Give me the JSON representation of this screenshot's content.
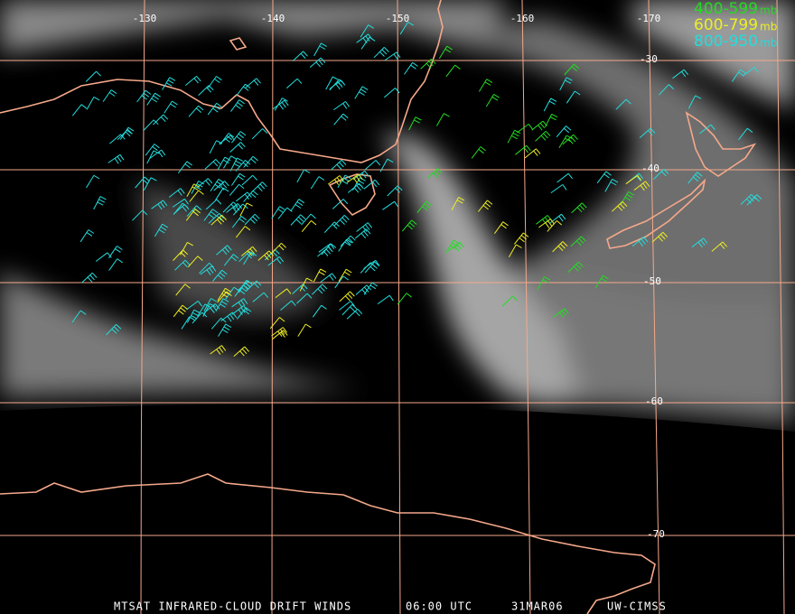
{
  "title": "MTSAT INFRARED-CLOUD DRIFT WINDS",
  "time": "06:00 UTC",
  "date": "31MAR06",
  "source": "UW-CIMSS",
  "longitude_labels": [
    "-130",
    "-140",
    "-150",
    "-160",
    "-170"
  ],
  "latitude_labels": [
    "-30",
    "-40",
    "-50",
    "-60",
    "-70"
  ],
  "legend": [
    {
      "range": "400-599",
      "unit": "mb",
      "color": "#22dd22"
    },
    {
      "range": "600-799",
      "unit": "mb",
      "color": "#eeee22"
    },
    {
      "range": "800-950",
      "unit": "mb",
      "color": "#22dddd"
    }
  ]
}
